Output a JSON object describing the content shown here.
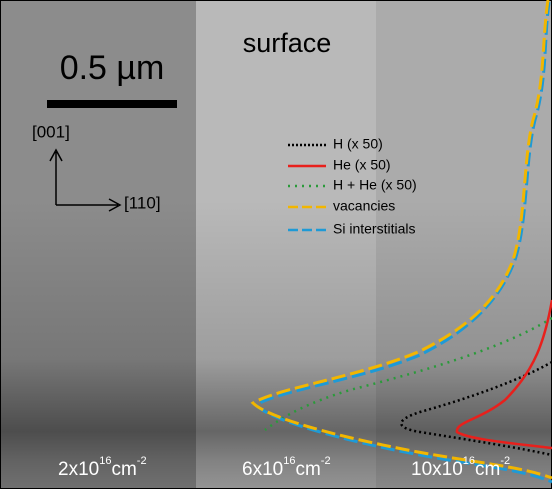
{
  "scale_bar": "0.5 µm",
  "region_label": "surface",
  "axes": {
    "up": "[001]",
    "right": "[110]"
  },
  "legend": [
    "H (x 50)",
    "He (x 50)",
    "H + He (x 50)",
    "vacancies",
    "Si interstitials"
  ],
  "doses": [
    {
      "base": "2x10",
      "exp": "16",
      "unit": "cm",
      "unit_exp": "-2"
    },
    {
      "base": "6x10",
      "exp": "16",
      "unit": "cm",
      "unit_exp": "-2"
    },
    {
      "base": "10x10",
      "exp": "16",
      "unit": "cm",
      "unit_exp": "-2"
    }
  ]
}
